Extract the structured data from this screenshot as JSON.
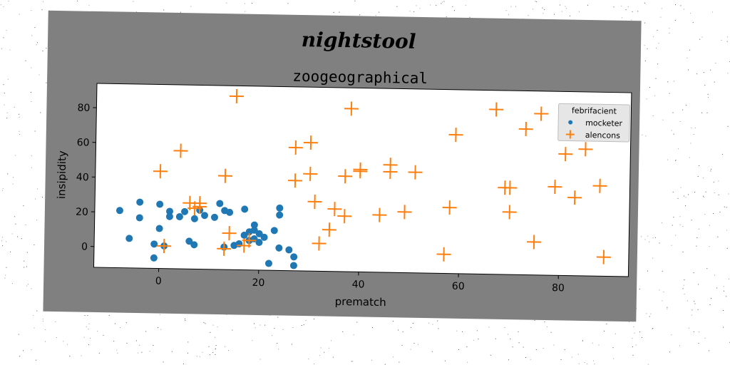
{
  "chart_data": {
    "type": "scatter",
    "title": "nightstool",
    "subtitle": "zoogeographical",
    "xlabel": "prematch",
    "ylabel": "insipidity",
    "xlim": [
      -13,
      94
    ],
    "ylim": [
      -12,
      94
    ],
    "xticks": [
      0,
      20,
      40,
      60,
      80
    ],
    "yticks": [
      0,
      20,
      40,
      60,
      80
    ],
    "grid": false,
    "legend": {
      "title": "febrifacient",
      "placement": "top-right"
    },
    "series": [
      {
        "name": "mocketer",
        "marker": "circle",
        "color": "#1f77b4",
        "points": [
          [
            -8,
            21
          ],
          [
            -6,
            5
          ],
          [
            -4,
            26
          ],
          [
            -4,
            17
          ],
          [
            -1,
            2
          ],
          [
            -1,
            -6
          ],
          [
            0,
            25
          ],
          [
            0,
            11
          ],
          [
            1,
            1
          ],
          [
            2,
            21
          ],
          [
            2,
            18
          ],
          [
            4,
            18
          ],
          [
            5,
            21
          ],
          [
            6,
            4
          ],
          [
            7,
            2
          ],
          [
            7,
            17
          ],
          [
            8,
            22
          ],
          [
            9,
            19
          ],
          [
            11,
            18
          ],
          [
            12,
            26
          ],
          [
            13,
            1
          ],
          [
            13,
            22
          ],
          [
            14,
            21
          ],
          [
            15,
            2
          ],
          [
            16,
            3
          ],
          [
            17,
            8
          ],
          [
            17,
            23
          ],
          [
            18,
            10
          ],
          [
            18,
            5
          ],
          [
            19,
            14
          ],
          [
            19,
            11
          ],
          [
            19,
            6
          ],
          [
            20,
            4
          ],
          [
            20,
            9
          ],
          [
            21,
            7
          ],
          [
            22,
            -8
          ],
          [
            23,
            11
          ],
          [
            24,
            24
          ],
          [
            24,
            20
          ],
          [
            24,
            1
          ],
          [
            26,
            0
          ],
          [
            27,
            -9
          ],
          [
            27,
            -4
          ]
        ]
      },
      {
        "name": "alencons",
        "marker": "plus",
        "color": "#ff7f0e",
        "points": [
          [
            0,
            44
          ],
          [
            1,
            1
          ],
          [
            4,
            56
          ],
          [
            6,
            26
          ],
          [
            7,
            23
          ],
          [
            8,
            26
          ],
          [
            8,
            24
          ],
          [
            13,
            0
          ],
          [
            13,
            42
          ],
          [
            14,
            9
          ],
          [
            15,
            88
          ],
          [
            17,
            2
          ],
          [
            18,
            5
          ],
          [
            27,
            40
          ],
          [
            27,
            59
          ],
          [
            30,
            62
          ],
          [
            30,
            44
          ],
          [
            31,
            28
          ],
          [
            32,
            4
          ],
          [
            34,
            12
          ],
          [
            35,
            24
          ],
          [
            37,
            20
          ],
          [
            37,
            43
          ],
          [
            38,
            82
          ],
          [
            40,
            47
          ],
          [
            40,
            46
          ],
          [
            44,
            21
          ],
          [
            46,
            50
          ],
          [
            46,
            46
          ],
          [
            49,
            23
          ],
          [
            51,
            46
          ],
          [
            57,
            -1
          ],
          [
            58,
            26
          ],
          [
            59,
            68
          ],
          [
            67,
            83
          ],
          [
            69,
            38
          ],
          [
            70,
            38
          ],
          [
            70,
            24
          ],
          [
            73,
            72
          ],
          [
            75,
            7
          ],
          [
            76,
            81
          ],
          [
            79,
            39
          ],
          [
            81,
            58
          ],
          [
            83,
            33
          ],
          [
            85,
            61
          ],
          [
            88,
            40
          ],
          [
            89,
            -1
          ]
        ]
      }
    ]
  }
}
